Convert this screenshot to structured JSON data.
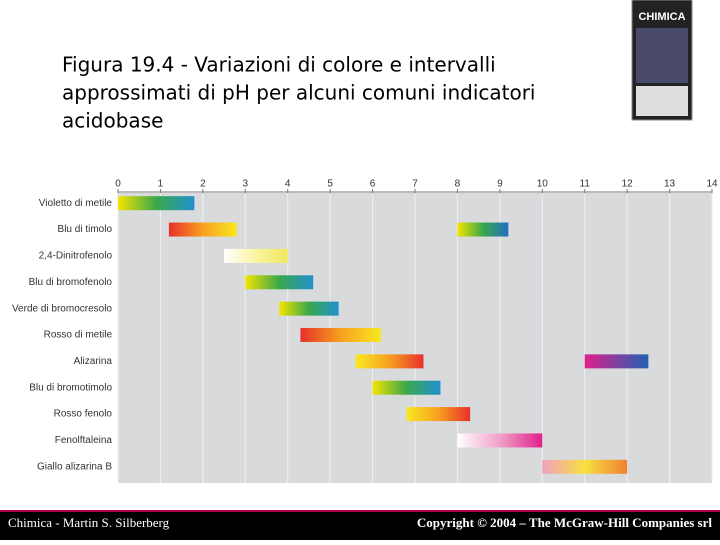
{
  "slide": {
    "title_lines": [
      "Figura 19.4 - Variazioni di colore e intervalli",
      "approssimati di pH per alcuni comuni indicatori",
      "acidobase"
    ],
    "cover_title": "CHIMICA",
    "footer_left": "Chimica - Martin S. Silberberg",
    "footer_right": "Copyright © 2004 – The McGraw-Hill Companies srl"
  },
  "chart_data": {
    "type": "range",
    "xlim": [
      0,
      14
    ],
    "xticks": [
      0,
      1,
      2,
      3,
      4,
      5,
      6,
      7,
      8,
      9,
      10,
      11,
      12,
      13,
      14
    ],
    "grid": true,
    "indicators": [
      {
        "name": "Violetto di metile",
        "ranges": [
          {
            "from": 0.0,
            "to": 1.8,
            "colors": [
              "#f4e400",
              "#3aa84a",
              "#2090d0"
            ]
          }
        ]
      },
      {
        "name": "Blu di timolo",
        "ranges": [
          {
            "from": 1.2,
            "to": 2.8,
            "colors": [
              "#e8302a",
              "#f7a020",
              "#f8e820"
            ]
          },
          {
            "from": 8.0,
            "to": 9.2,
            "colors": [
              "#f4e400",
              "#3aa84a",
              "#2070c0"
            ]
          }
        ]
      },
      {
        "name": "2,4-Dinitrofenolo",
        "ranges": [
          {
            "from": 2.5,
            "to": 4.0,
            "colors": [
              "#ffffff",
              "#f8f4a0",
              "#f2e860"
            ]
          }
        ]
      },
      {
        "name": "Blu di bromofenolo",
        "ranges": [
          {
            "from": 3.0,
            "to": 4.6,
            "colors": [
              "#f4e400",
              "#3aa84a",
              "#2090d0"
            ]
          }
        ]
      },
      {
        "name": "Verde di bromocresolo",
        "ranges": [
          {
            "from": 3.8,
            "to": 5.2,
            "colors": [
              "#f4e400",
              "#3aa84a",
              "#2090d0"
            ]
          }
        ]
      },
      {
        "name": "Rosso di metile",
        "ranges": [
          {
            "from": 4.3,
            "to": 6.2,
            "colors": [
              "#e8302a",
              "#f7a020",
              "#f8e820"
            ]
          }
        ]
      },
      {
        "name": "Alizarina",
        "ranges": [
          {
            "from": 5.6,
            "to": 7.2,
            "colors": [
              "#f8e820",
              "#f7a020",
              "#e8302a"
            ]
          },
          {
            "from": 11.0,
            "to": 12.5,
            "colors": [
              "#e0208a",
              "#8040a0",
              "#2060b0"
            ]
          }
        ]
      },
      {
        "name": "Blu di bromotimolo",
        "ranges": [
          {
            "from": 6.0,
            "to": 7.6,
            "colors": [
              "#f4e400",
              "#3aa84a",
              "#2090d0"
            ]
          }
        ]
      },
      {
        "name": "Rosso fenolo",
        "ranges": [
          {
            "from": 6.8,
            "to": 8.3,
            "colors": [
              "#f8e820",
              "#f7a020",
              "#e8302a"
            ]
          }
        ]
      },
      {
        "name": "Fenolftaleina",
        "ranges": [
          {
            "from": 8.0,
            "to": 10.0,
            "colors": [
              "#ffffff",
              "#f0a0c8",
              "#e0208a"
            ]
          }
        ]
      },
      {
        "name": "Giallo alizarina B",
        "ranges": [
          {
            "from": 10.0,
            "to": 12.0,
            "colors": [
              "#f0a0c0",
              "#f8e040",
              "#f08030"
            ]
          }
        ]
      }
    ]
  }
}
